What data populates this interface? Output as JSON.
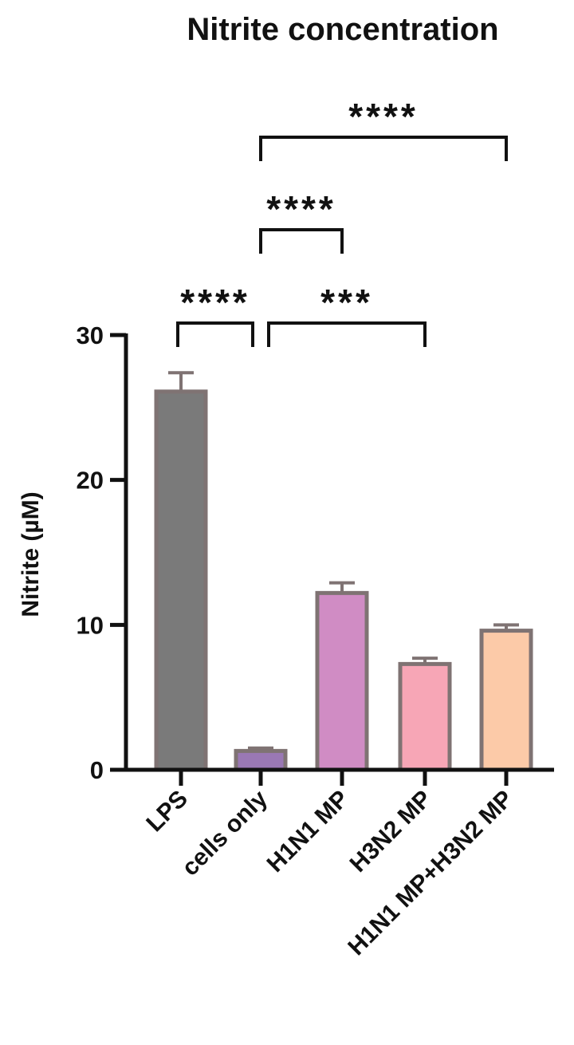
{
  "chart_data": {
    "type": "bar",
    "title": "Nitrite concentration",
    "ylabel": "Nitrite (µM)",
    "xlabel": "",
    "ylim": [
      0,
      30
    ],
    "yticks": [
      0,
      10,
      20,
      30
    ],
    "categories": [
      "LPS",
      "cells only",
      "H1N1 MP",
      "H3N2 MP",
      "H1N1 MP+H3N2 MP"
    ],
    "values": [
      26.1,
      1.3,
      12.2,
      7.3,
      9.6
    ],
    "errors": [
      1.3,
      0.2,
      0.7,
      0.4,
      0.4
    ],
    "colors": [
      "#7a7a7a",
      "#9a78b4",
      "#d08cc4",
      "#f7a6b6",
      "#fccaa8"
    ],
    "edge_color": "#7f7373",
    "significance": [
      {
        "from": 0,
        "to": 1,
        "label": "****"
      },
      {
        "from": 1,
        "to": 3,
        "label": "***"
      },
      {
        "from": 1,
        "to": 2,
        "label": "****"
      },
      {
        "from": 1,
        "to": 4,
        "label": "****"
      }
    ]
  }
}
